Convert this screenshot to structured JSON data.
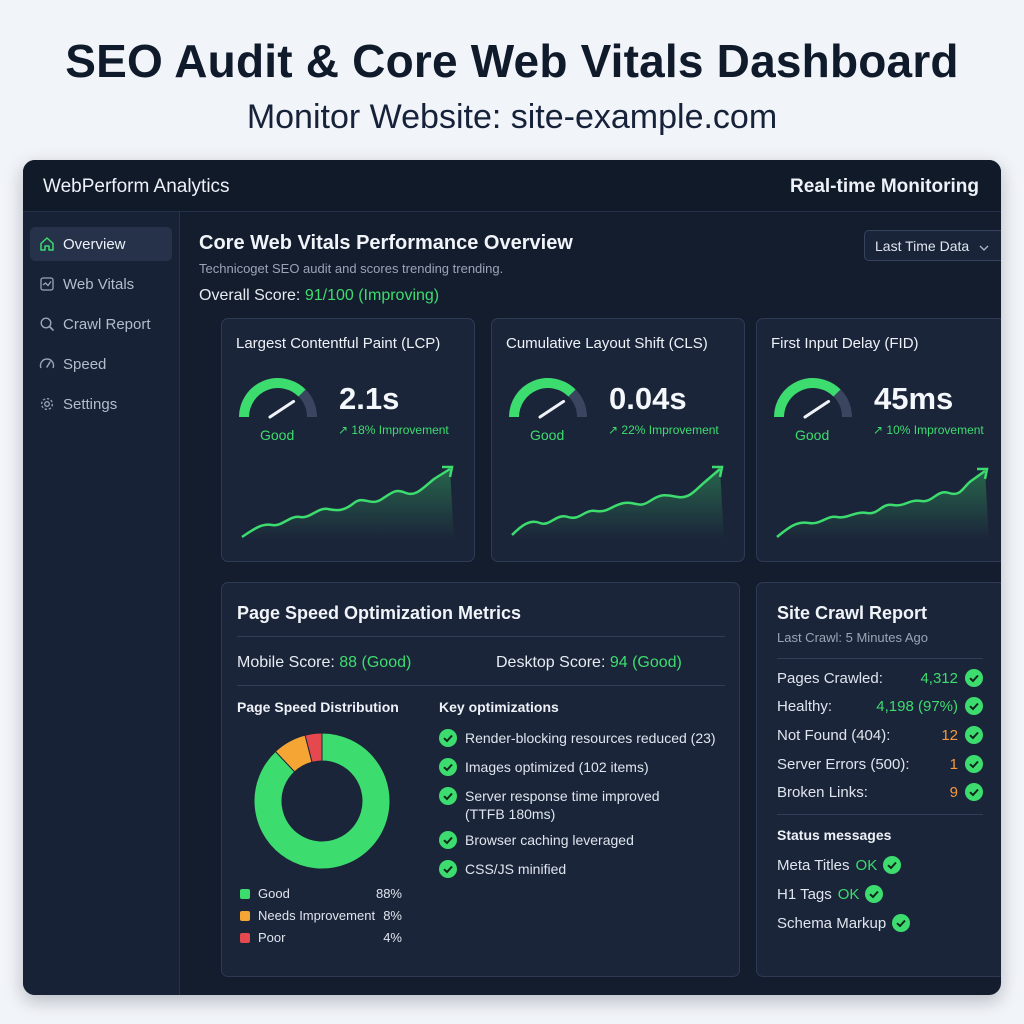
{
  "page": {
    "title": "SEO Audit & Core Web Vitals Dashboard",
    "subtitle": "Monitor Website: site-example.com"
  },
  "app": {
    "brand": "WebPerform Analytics",
    "header_right": "Real-time Monitoring"
  },
  "sidebar": {
    "items": [
      {
        "label": "Overview",
        "icon": "home-icon",
        "active": true
      },
      {
        "label": "Web Vitals",
        "icon": "vitals-icon",
        "active": false
      },
      {
        "label": "Crawl Report",
        "icon": "search-icon",
        "active": false
      },
      {
        "label": "Speed",
        "icon": "speedometer-icon",
        "active": false
      },
      {
        "label": "Settings",
        "icon": "gear-icon",
        "active": false
      }
    ]
  },
  "overview": {
    "title": "Core Web Vitals Performance Overview",
    "subtitle": "Technicoget SEO audit and scores trending trending.",
    "score_label": "Overall Score:",
    "score_value": "91/100 (Improving)",
    "dropdown": "Last Time Data"
  },
  "vitals": [
    {
      "title": "Largest Contentful Paint (LCP)",
      "status": "Good",
      "value": "2.1s",
      "trend": "18% Improvement",
      "gauge_level": 0.75
    },
    {
      "title": "Cumulative Layout Shift (CLS)",
      "status": "Good",
      "value": "0.04s",
      "trend": "22% Improvement",
      "gauge_level": 0.75
    },
    {
      "title": "First Input Delay (FID)",
      "status": "Good",
      "value": "45ms",
      "trend": "10% Improvement",
      "gauge_level": 0.75
    }
  ],
  "page_speed": {
    "title": "Page Speed Optimization Metrics",
    "mobile_label": "Mobile Score:",
    "mobile_value": "88 (Good)",
    "desktop_label": "Desktop Score:",
    "desktop_value": "94 (Good)",
    "distribution_title": "Page Speed Distribution",
    "distribution": [
      {
        "label": "Good",
        "value": "88%",
        "pct": 88,
        "color": "#3ddc6f"
      },
      {
        "label": "Needs Improvement",
        "value": "8%",
        "pct": 8,
        "color": "#f5a533"
      },
      {
        "label": "Poor",
        "value": "4%",
        "pct": 4,
        "color": "#e5484d"
      }
    ],
    "optimizations_title": "Key optimizations",
    "optimizations": [
      "Render-blocking resources reduced (23)",
      "Images optimized (102 items)",
      "Server response time improved (TTFB 180ms)",
      "Browser caching leveraged",
      "CSS/JS minified"
    ]
  },
  "crawl": {
    "title": "Site Crawl Report",
    "subtitle": "Last Crawl: 5 Minutes Ago",
    "rows": [
      {
        "label": "Pages Crawled:",
        "value": "4,312",
        "tone": "green"
      },
      {
        "label": "Healthy:",
        "value": "4,198 (97%)",
        "tone": "green"
      },
      {
        "label": "Not Found (404):",
        "value": "12",
        "tone": "orange"
      },
      {
        "label": "Server Errors (500):",
        "value": "1",
        "tone": "orange"
      },
      {
        "label": "Broken Links:",
        "value": "9",
        "tone": "orange"
      }
    ],
    "status_title": "Status messages",
    "status": [
      {
        "label": "Meta Titles",
        "value": "OK"
      },
      {
        "label": "H1 Tags",
        "value": "OK"
      },
      {
        "label": "Schema Markup",
        "value": ""
      }
    ]
  },
  "colors": {
    "accent": "#3ddc6f",
    "warning": "#f59a3c",
    "error": "#e5484d",
    "panel": "#1b2539"
  }
}
